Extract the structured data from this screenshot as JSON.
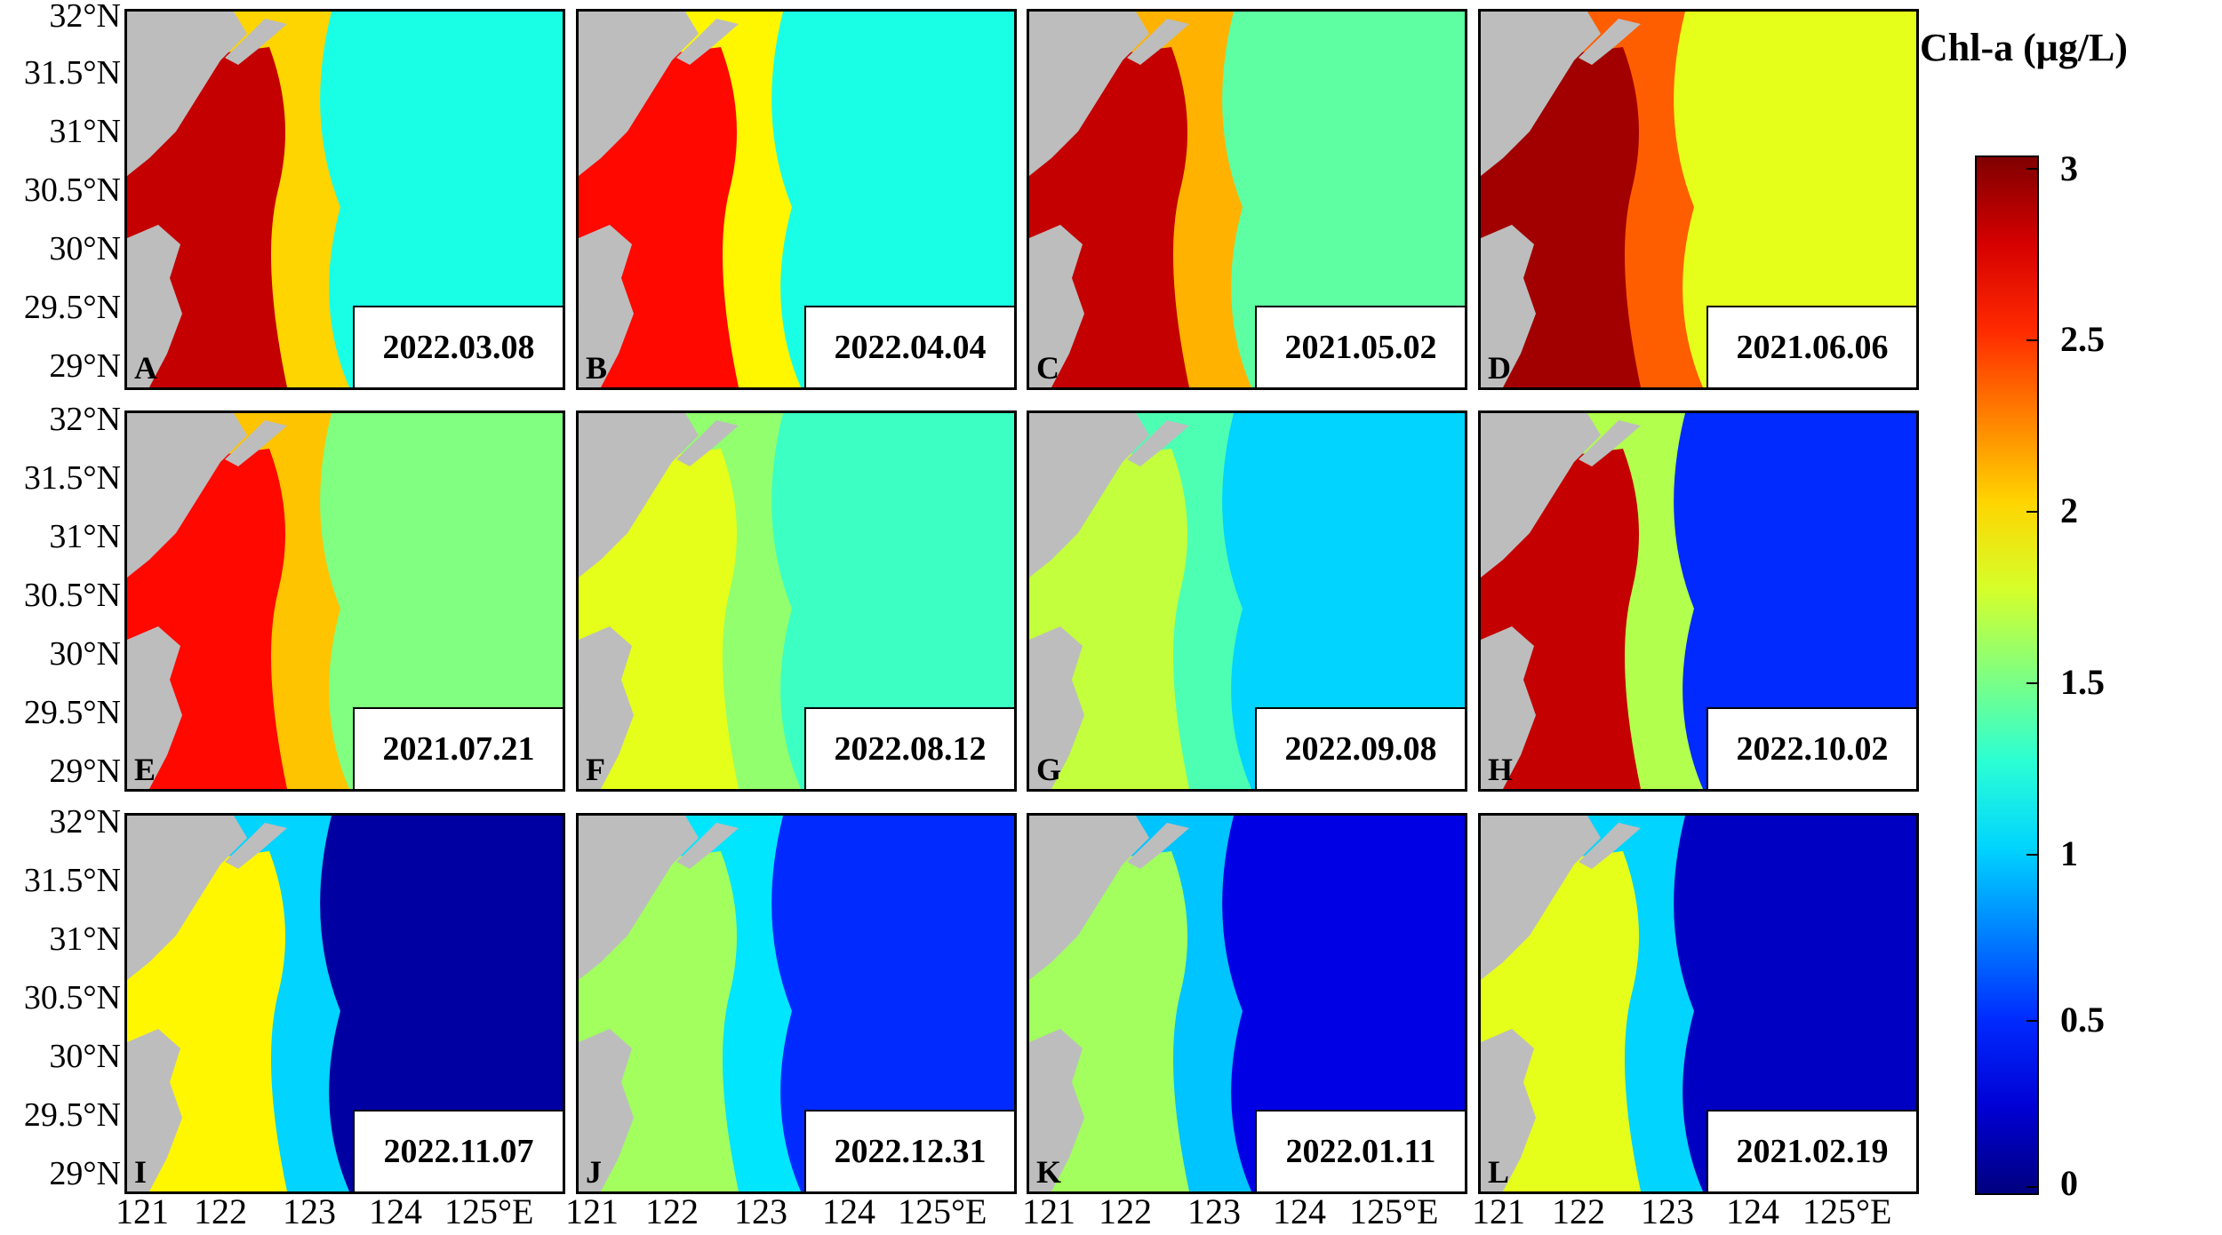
{
  "figure": {
    "y_tick_labels": [
      "32°N",
      "31.5°N",
      "31°N",
      "30.5°N",
      "30°N",
      "29.5°N",
      "29°N"
    ],
    "x_tick_labels": [
      "121",
      "122",
      "123",
      "124",
      "125°E"
    ],
    "panels": [
      {
        "letter": "A",
        "date": "2022.03.08",
        "chl_level": 1.2,
        "coastal_level": 2.8
      },
      {
        "letter": "B",
        "date": "2022.04.04",
        "chl_level": 1.2,
        "coastal_level": 2.6
      },
      {
        "letter": "C",
        "date": "2021.05.02",
        "chl_level": 1.4,
        "coastal_level": 2.8
      },
      {
        "letter": "D",
        "date": "2021.06.06",
        "chl_level": 1.8,
        "coastal_level": 2.9
      },
      {
        "letter": "E",
        "date": "2021.07.21",
        "chl_level": 1.5,
        "coastal_level": 2.6
      },
      {
        "letter": "F",
        "date": "2022.08.12",
        "chl_level": 1.3,
        "coastal_level": 1.8
      },
      {
        "letter": "G",
        "date": "2022.09.08",
        "chl_level": 1.0,
        "coastal_level": 1.7
      },
      {
        "letter": "H",
        "date": "2022.10.02",
        "chl_level": 0.5,
        "coastal_level": 2.8
      },
      {
        "letter": "I",
        "date": "2022.11.07",
        "chl_level": 0.1,
        "coastal_level": 1.9
      },
      {
        "letter": "J",
        "date": "2022.12.31",
        "chl_level": 0.5,
        "coastal_level": 1.6
      },
      {
        "letter": "K",
        "date": "2022.01.11",
        "chl_level": 0.3,
        "coastal_level": 1.6
      },
      {
        "letter": "L",
        "date": "2021.02.19",
        "chl_level": 0.2,
        "coastal_level": 1.8
      }
    ],
    "colorbar": {
      "title": "Chl-a (μg/L)",
      "ticks": [
        "3",
        "2.5",
        "2",
        "1.5",
        "1",
        "0.5",
        "0"
      ],
      "min": 0,
      "max": 3
    },
    "colors": {
      "land": "#bdbdbd",
      "cloud": "#ffffff",
      "highlight_box": "#e040e0",
      "outline_circle": "#000000"
    }
  }
}
